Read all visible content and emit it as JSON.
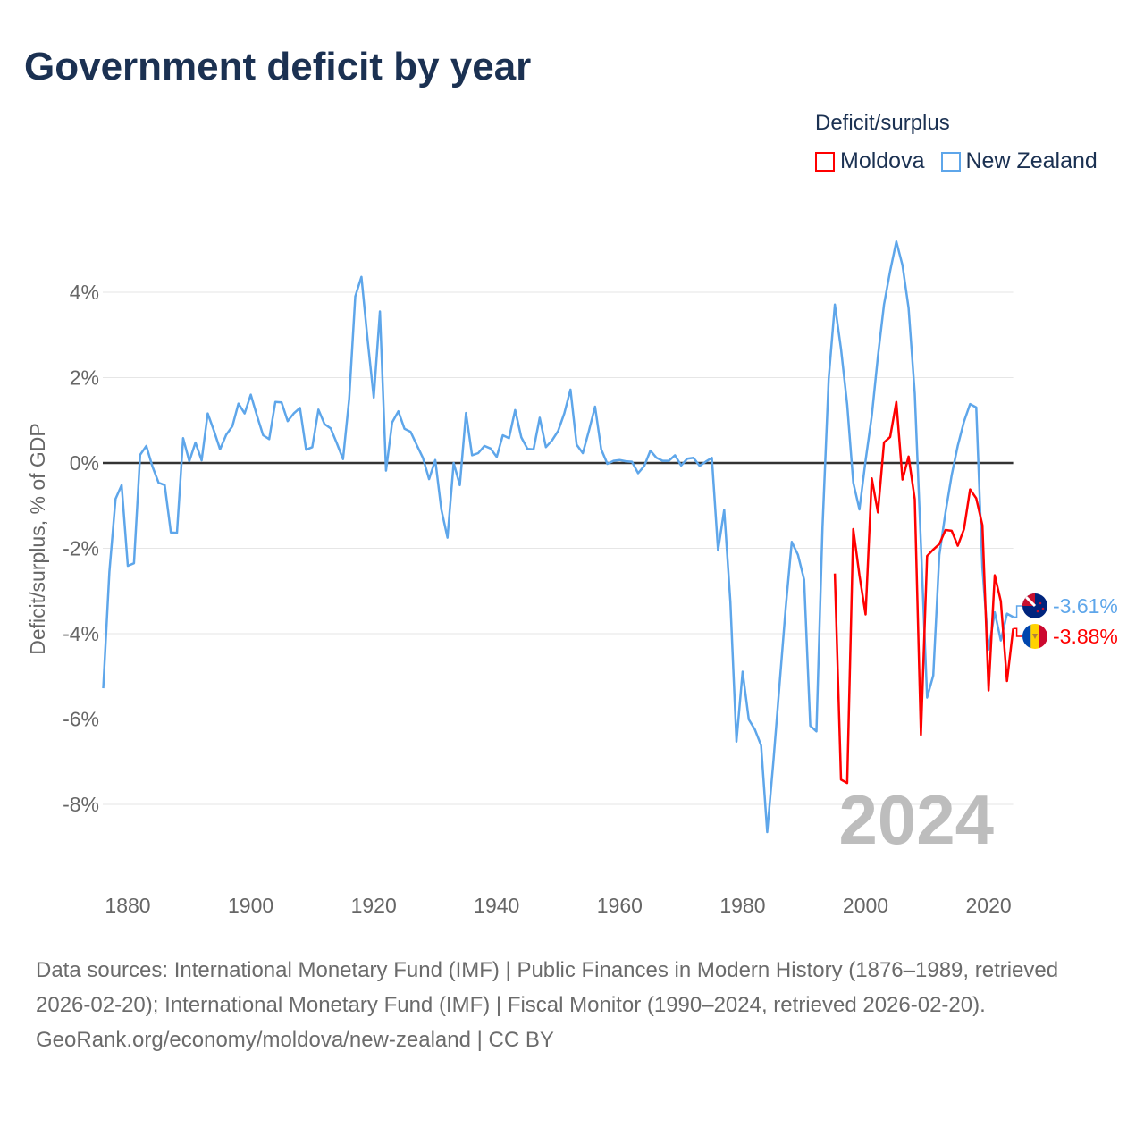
{
  "chart_data": {
    "type": "line",
    "title": "Government deficit by year",
    "xlabel": "",
    "ylabel": "Deficit/surplus, % of GDP",
    "xlim": [
      1876,
      2024
    ],
    "ylim": [
      -9.5,
      5.5
    ],
    "grid": true,
    "x_ticks": [
      1880,
      1900,
      1920,
      1940,
      1960,
      1980,
      2000,
      2020
    ],
    "y_ticks": [
      4,
      2,
      0,
      -2,
      -4,
      -6,
      -8
    ],
    "y_tick_labels": [
      "4%",
      "2%",
      "0%",
      "-2%",
      "-4%",
      "-6%",
      "-8%"
    ],
    "x_tick_labels": [
      "1880",
      "1900",
      "1920",
      "1940",
      "1960",
      "1980",
      "2000",
      "2020"
    ],
    "legend": {
      "title": "Deficit/surplus",
      "position": "top-right"
    },
    "year_label": "2024",
    "series": [
      {
        "name": "Moldova",
        "color": "#ff0000",
        "end_label": "-3.88%",
        "flag": "moldova-flag",
        "start_year": 1995,
        "values": [
          -2.59,
          -7.42,
          -7.5,
          -1.55,
          -2.63,
          -3.55,
          -0.36,
          -1.16,
          0.48,
          0.61,
          1.43,
          -0.39,
          0.15,
          -0.85,
          -6.37,
          -2.18,
          -2.03,
          -1.9,
          -1.57,
          -1.59,
          -1.94,
          -1.55,
          -0.62,
          -0.83,
          -1.46,
          -5.33,
          -2.63,
          -3.24,
          -5.11,
          -3.88
        ]
      },
      {
        "name": "New Zealand",
        "color": "#5ea6ea",
        "end_label": "-3.61%",
        "flag": "new-zealand-flag",
        "start_year": 1876,
        "values": [
          -5.28,
          -2.55,
          -0.84,
          -0.52,
          -2.41,
          -2.35,
          0.19,
          0.4,
          -0.08,
          -0.46,
          -0.52,
          -1.63,
          -1.64,
          0.58,
          0.04,
          0.48,
          0.06,
          1.16,
          0.76,
          0.32,
          0.66,
          0.86,
          1.39,
          1.16,
          1.6,
          1.11,
          0.65,
          0.56,
          1.43,
          1.42,
          0.98,
          1.16,
          1.29,
          0.31,
          0.37,
          1.25,
          0.91,
          0.81,
          0.46,
          0.09,
          1.5,
          3.9,
          4.36,
          2.89,
          1.53,
          3.55,
          -0.18,
          0.95,
          1.21,
          0.8,
          0.73,
          0.42,
          0.12,
          -0.38,
          0.07,
          -1.09,
          -1.75,
          0.0,
          -0.52,
          1.17,
          0.18,
          0.23,
          0.4,
          0.34,
          0.14,
          0.65,
          0.58,
          1.24,
          0.6,
          0.33,
          0.32,
          1.06,
          0.37,
          0.53,
          0.75,
          1.16,
          1.72,
          0.43,
          0.23,
          0.75,
          1.32,
          0.32,
          -0.02,
          0.05,
          0.07,
          0.04,
          0.03,
          -0.24,
          -0.07,
          0.29,
          0.12,
          0.05,
          0.05,
          0.18,
          -0.06,
          0.1,
          0.12,
          -0.07,
          0.03,
          0.12,
          -2.05,
          -1.1,
          -3.25,
          -6.53,
          -4.89,
          -6.01,
          -6.25,
          -6.62,
          -8.65,
          -7.0,
          -5.2,
          -3.4,
          -1.85,
          -2.15,
          -2.73,
          -6.16,
          -6.29,
          -1.5,
          1.97,
          3.71,
          2.67,
          1.37,
          -0.46,
          -1.09,
          0.06,
          1.1,
          2.5,
          3.71,
          4.5,
          5.19,
          4.63,
          3.63,
          1.63,
          -1.9,
          -5.5,
          -4.98,
          -2.16,
          -1.16,
          -0.29,
          0.41,
          0.97,
          1.38,
          1.3,
          -2.46,
          -4.37,
          -3.5,
          -4.16,
          -3.53,
          -3.61
        ]
      }
    ]
  },
  "legend_items": [
    "Moldova",
    "New Zealand"
  ],
  "footer": {
    "sources": "Data sources: International Monetary Fund (IMF) | Public Finances in Modern History (1876–1989, retrieved 2026-02-20); International Monetary Fund (IMF) | Fiscal Monitor (1990–2024, retrieved 2026-02-20).",
    "credit": "GeoRank.org/economy/moldova/new-zealand | CC BY"
  }
}
